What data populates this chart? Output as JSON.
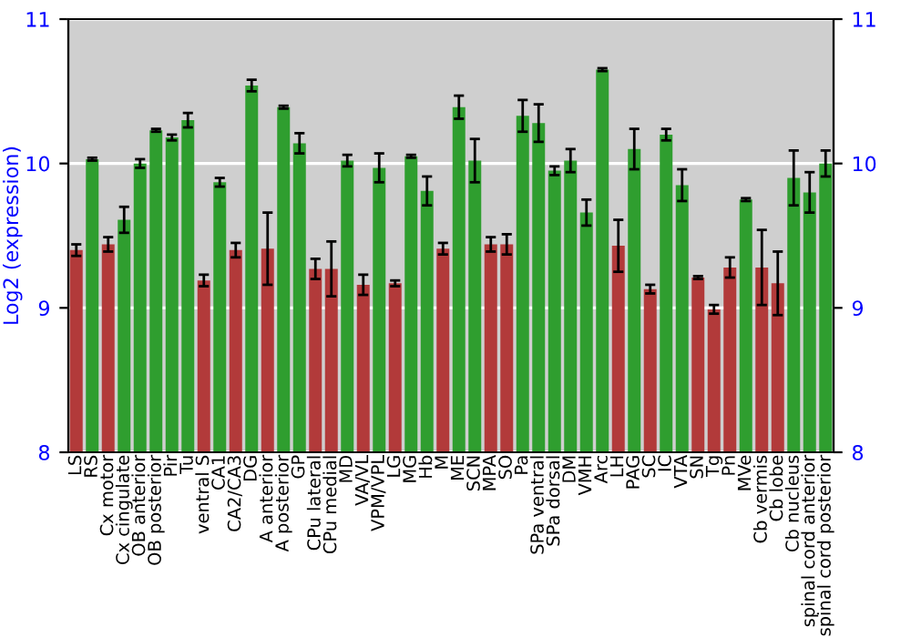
{
  "chart_data": {
    "type": "bar",
    "ylabel": "Log2 (expression)",
    "categories": [
      "LS",
      "RS",
      "Cx motor",
      "Cx cingulate",
      "OB anterior",
      "OB posterior",
      "Pir",
      "Tu",
      "ventral S",
      "CA1",
      "CA2/CA3",
      "DG",
      "A anterior",
      "A posterior",
      "GP",
      "CPu lateral",
      "CPu medial",
      "MD",
      "VA/VL",
      "VPM/VPL",
      "LG",
      "MG",
      "Hb",
      "M",
      "ME",
      "SCN",
      "MPA",
      "SO",
      "Pa",
      "SPa ventral",
      "SPa dorsal",
      "DM",
      "VMH",
      "Arc",
      "LH",
      "PAG",
      "SC",
      "IC",
      "VTA",
      "SN",
      "Tg",
      "Pn",
      "MVe",
      "Cb vermis",
      "Cb lobe",
      "Cb nucleus",
      "spinal cord anterior",
      "spinal cord posterior"
    ],
    "values": [
      9.4,
      10.03,
      9.44,
      9.61,
      10.0,
      10.23,
      10.18,
      10.3,
      9.19,
      9.87,
      9.4,
      10.54,
      9.41,
      10.39,
      10.14,
      9.27,
      9.27,
      10.02,
      9.16,
      9.97,
      9.17,
      10.05,
      9.81,
      9.41,
      10.39,
      10.02,
      9.44,
      9.44,
      10.33,
      10.28,
      9.95,
      10.02,
      9.66,
      10.65,
      9.43,
      10.1,
      9.13,
      10.2,
      9.85,
      9.21,
      8.99,
      9.28,
      9.75,
      9.28,
      9.17,
      9.9,
      9.8,
      10.0
    ],
    "errors": [
      0.04,
      0.01,
      0.05,
      0.09,
      0.03,
      0.01,
      0.02,
      0.05,
      0.04,
      0.03,
      0.05,
      0.04,
      0.25,
      0.01,
      0.07,
      0.07,
      0.19,
      0.04,
      0.07,
      0.1,
      0.02,
      0.01,
      0.1,
      0.04,
      0.08,
      0.15,
      0.05,
      0.07,
      0.11,
      0.13,
      0.03,
      0.08,
      0.09,
      0.01,
      0.18,
      0.14,
      0.03,
      0.04,
      0.11,
      0.01,
      0.03,
      0.07,
      0.01,
      0.26,
      0.22,
      0.19,
      0.14,
      0.09
    ],
    "colors": [
      "#b23a3a",
      "#2f9e2f",
      "#b23a3a",
      "#2f9e2f",
      "#2f9e2f",
      "#2f9e2f",
      "#2f9e2f",
      "#2f9e2f",
      "#b23a3a",
      "#2f9e2f",
      "#b23a3a",
      "#2f9e2f",
      "#b23a3a",
      "#2f9e2f",
      "#2f9e2f",
      "#b23a3a",
      "#b23a3a",
      "#2f9e2f",
      "#b23a3a",
      "#2f9e2f",
      "#b23a3a",
      "#2f9e2f",
      "#2f9e2f",
      "#b23a3a",
      "#2f9e2f",
      "#2f9e2f",
      "#b23a3a",
      "#b23a3a",
      "#2f9e2f",
      "#2f9e2f",
      "#2f9e2f",
      "#2f9e2f",
      "#2f9e2f",
      "#2f9e2f",
      "#b23a3a",
      "#2f9e2f",
      "#b23a3a",
      "#2f9e2f",
      "#2f9e2f",
      "#b23a3a",
      "#b23a3a",
      "#b23a3a",
      "#2f9e2f",
      "#b23a3a",
      "#b23a3a",
      "#2f9e2f",
      "#2f9e2f",
      "#2f9e2f"
    ],
    "ylim": [
      8,
      11
    ],
    "yticks": [
      8,
      9,
      10,
      11
    ],
    "y2lim": [
      8,
      11
    ],
    "y2ticks": [
      8,
      9,
      10,
      11
    ],
    "grid": "y"
  }
}
